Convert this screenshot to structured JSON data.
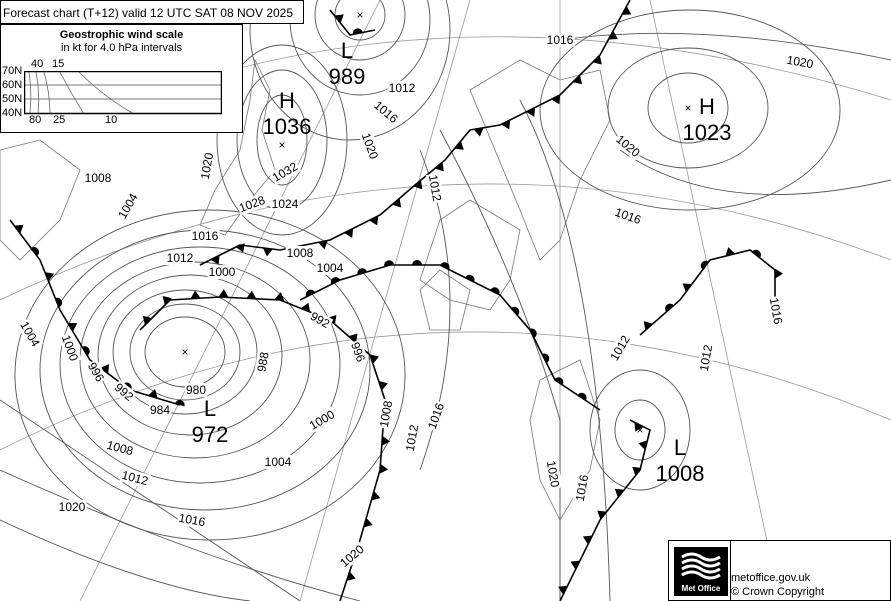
{
  "header": {
    "title": "Forecast chart (T+12) valid 12 UTC SAT 08  NOV 2025"
  },
  "legend": {
    "title": "Geostrophic wind scale",
    "subtitle": "in kt for 4.0 hPa intervals",
    "latitudes": [
      "70N",
      "60N",
      "50N",
      "40N"
    ],
    "top_ticks": [
      "40",
      "15"
    ],
    "bottom_ticks": [
      "80",
      "25",
      "10"
    ]
  },
  "centers": [
    {
      "type": "L",
      "value": "989"
    },
    {
      "type": "H",
      "value": "1036"
    },
    {
      "type": "L",
      "value": "972"
    },
    {
      "type": "H",
      "value": "1023"
    },
    {
      "type": "L",
      "value": "1008"
    }
  ],
  "isobar_labels": [
    "1016",
    "1012",
    "1016",
    "1020",
    "1020",
    "1020",
    "1032",
    "1028",
    "1024",
    "1020",
    "1008",
    "1004",
    "1016",
    "1012",
    "1008",
    "1000",
    "1004",
    "1012",
    "1016",
    "992",
    "988",
    "996",
    "980",
    "984",
    "1000",
    "1008",
    "1012",
    "1016",
    "1004",
    "1008",
    "1012",
    "992",
    "996",
    "1000",
    "1004",
    "1020",
    "1016",
    "1020",
    "1020",
    "1016",
    "1012",
    "1012",
    "1016"
  ],
  "footer": {
    "logo_text": "Met Office",
    "site": "metoffice.gov.uk",
    "copyright": "© Crown Copyright"
  },
  "colors": {
    "isobar": "#555555",
    "front": "#000000",
    "grid": "#888888"
  }
}
